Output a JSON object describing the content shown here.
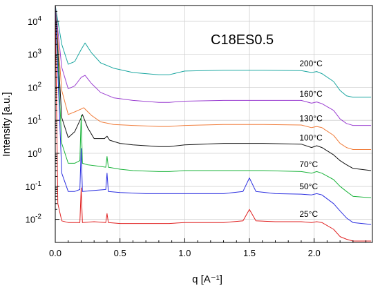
{
  "chart_data": {
    "type": "line",
    "title": "C18ES0.5",
    "xlabel": "q [A⁻¹]",
    "ylabel": "Intensity [a.u.]",
    "xlim": [
      0,
      2.45
    ],
    "ylim": [
      0.002,
      30000
    ],
    "y_scale": "log",
    "grid": true,
    "x_ticks": [
      {
        "value": 0.0,
        "label": "0.0"
      },
      {
        "value": 0.5,
        "label": "0.5"
      },
      {
        "value": 1.0,
        "label": "1.0"
      },
      {
        "value": 1.5,
        "label": "1.5"
      },
      {
        "value": 2.0,
        "label": "2.0"
      }
    ],
    "y_ticks": [
      {
        "value": 0.01,
        "base": "10",
        "exp": "-2"
      },
      {
        "value": 0.1,
        "base": "10",
        "exp": "-1"
      },
      {
        "value": 1,
        "base": "10",
        "exp": "0"
      },
      {
        "value": 10,
        "base": "10",
        "exp": "1"
      },
      {
        "value": 100,
        "base": "10",
        "exp": "2"
      },
      {
        "value": 1000,
        "base": "10",
        "exp": "3"
      },
      {
        "value": 10000,
        "base": "10",
        "exp": "4"
      }
    ],
    "series": [
      {
        "name": "200°C",
        "color": "#1aa6a0",
        "x": [
          0.0,
          0.05,
          0.1,
          0.15,
          0.2,
          0.23,
          0.28,
          0.35,
          0.45,
          0.6,
          0.8,
          0.88,
          1.0,
          1.3,
          1.6,
          1.9,
          1.98,
          2.02,
          2.06,
          2.15,
          2.2,
          2.25,
          2.3,
          2.44
        ],
        "y": [
          30000,
          2000,
          500,
          600,
          1400,
          2200,
          1100,
          550,
          380,
          280,
          240,
          240,
          310,
          330,
          330,
          320,
          280,
          300,
          260,
          150,
          80,
          55,
          50,
          50
        ]
      },
      {
        "name": "160°C",
        "color": "#9b3fd1",
        "x": [
          0.0,
          0.05,
          0.1,
          0.15,
          0.2,
          0.23,
          0.28,
          0.35,
          0.45,
          0.6,
          0.8,
          0.88,
          1.0,
          1.3,
          1.6,
          1.9,
          1.98,
          2.02,
          2.06,
          2.15,
          2.2,
          2.25,
          2.3,
          2.44
        ],
        "y": [
          30000,
          400,
          90,
          110,
          200,
          230,
          130,
          70,
          48,
          40,
          35,
          35,
          38,
          40,
          40,
          40,
          33,
          36,
          32,
          20,
          11,
          8,
          7,
          7
        ]
      },
      {
        "name": "130°C",
        "color": "#f07c3a",
        "x": [
          0.0,
          0.05,
          0.1,
          0.15,
          0.2,
          0.22,
          0.28,
          0.35,
          0.45,
          0.6,
          0.8,
          0.88,
          1.0,
          1.3,
          1.6,
          1.9,
          1.98,
          2.02,
          2.06,
          2.15,
          2.2,
          2.25,
          2.3,
          2.44
        ],
        "y": [
          30000,
          80,
          15,
          18,
          22,
          24,
          14,
          9,
          7.5,
          7,
          6.5,
          6.5,
          7,
          7.5,
          7.5,
          7.2,
          6,
          6.5,
          6,
          3.5,
          2,
          1.5,
          1.3,
          1.3
        ]
      },
      {
        "name": "100°C",
        "color": "#111111",
        "x": [
          0.0,
          0.05,
          0.1,
          0.15,
          0.2,
          0.21,
          0.25,
          0.3,
          0.38,
          0.4,
          0.42,
          0.5,
          0.6,
          0.8,
          0.88,
          1.0,
          1.3,
          1.6,
          1.9,
          1.98,
          2.02,
          2.06,
          2.15,
          2.2,
          2.25,
          2.3,
          2.44
        ],
        "y": [
          30000,
          12,
          3,
          4.5,
          12,
          15,
          6,
          2.8,
          2.8,
          3.3,
          2.5,
          2.0,
          1.8,
          1.6,
          1.6,
          1.8,
          2.0,
          2.0,
          1.9,
          1.5,
          1.7,
          1.5,
          0.9,
          0.6,
          0.45,
          0.35,
          0.3
        ]
      },
      {
        "name": "70°C",
        "color": "#19b33a",
        "x": [
          0.0,
          0.05,
          0.1,
          0.15,
          0.19,
          0.2,
          0.21,
          0.25,
          0.35,
          0.39,
          0.4,
          0.41,
          0.5,
          0.6,
          0.8,
          0.88,
          1.0,
          1.3,
          1.6,
          1.9,
          1.98,
          2.02,
          2.06,
          2.15,
          2.2,
          2.25,
          2.3,
          2.44
        ],
        "y": [
          30000,
          2,
          0.5,
          0.5,
          0.6,
          14,
          0.5,
          0.45,
          0.4,
          0.38,
          0.8,
          0.38,
          0.33,
          0.3,
          0.28,
          0.28,
          0.3,
          0.3,
          0.3,
          0.28,
          0.25,
          0.28,
          0.25,
          0.16,
          0.1,
          0.07,
          0.05,
          0.045
        ]
      },
      {
        "name": "50°C",
        "color": "#2a2ee0",
        "x": [
          0.0,
          0.05,
          0.1,
          0.15,
          0.19,
          0.2,
          0.21,
          0.3,
          0.39,
          0.4,
          0.41,
          0.5,
          0.7,
          0.88,
          1.0,
          1.3,
          1.45,
          1.5,
          1.55,
          1.7,
          1.9,
          1.98,
          2.02,
          2.06,
          2.15,
          2.2,
          2.25,
          2.3,
          2.44
        ],
        "y": [
          30000,
          0.25,
          0.07,
          0.07,
          0.08,
          1.4,
          0.07,
          0.075,
          0.08,
          0.25,
          0.07,
          0.065,
          0.06,
          0.06,
          0.06,
          0.06,
          0.07,
          0.18,
          0.07,
          0.06,
          0.058,
          0.055,
          0.06,
          0.055,
          0.03,
          0.018,
          0.011,
          0.008,
          0.007
        ]
      },
      {
        "name": "25°C",
        "color": "#e01e1e",
        "x": [
          0.0,
          0.02,
          0.05,
          0.1,
          0.15,
          0.19,
          0.2,
          0.21,
          0.3,
          0.39,
          0.4,
          0.41,
          0.5,
          0.7,
          0.88,
          1.0,
          1.3,
          1.45,
          1.5,
          1.55,
          1.7,
          1.9,
          1.98,
          2.02,
          2.06,
          2.15,
          2.2,
          2.25,
          2.3,
          2.44
        ],
        "y": [
          30000,
          0.03,
          0.009,
          0.008,
          0.008,
          0.008,
          0.09,
          0.008,
          0.0085,
          0.008,
          0.015,
          0.008,
          0.0075,
          0.0075,
          0.0075,
          0.008,
          0.008,
          0.009,
          0.02,
          0.009,
          0.0085,
          0.0085,
          0.008,
          0.0085,
          0.008,
          0.005,
          0.003,
          0.0025,
          0.0022,
          0.0022
        ]
      }
    ]
  }
}
